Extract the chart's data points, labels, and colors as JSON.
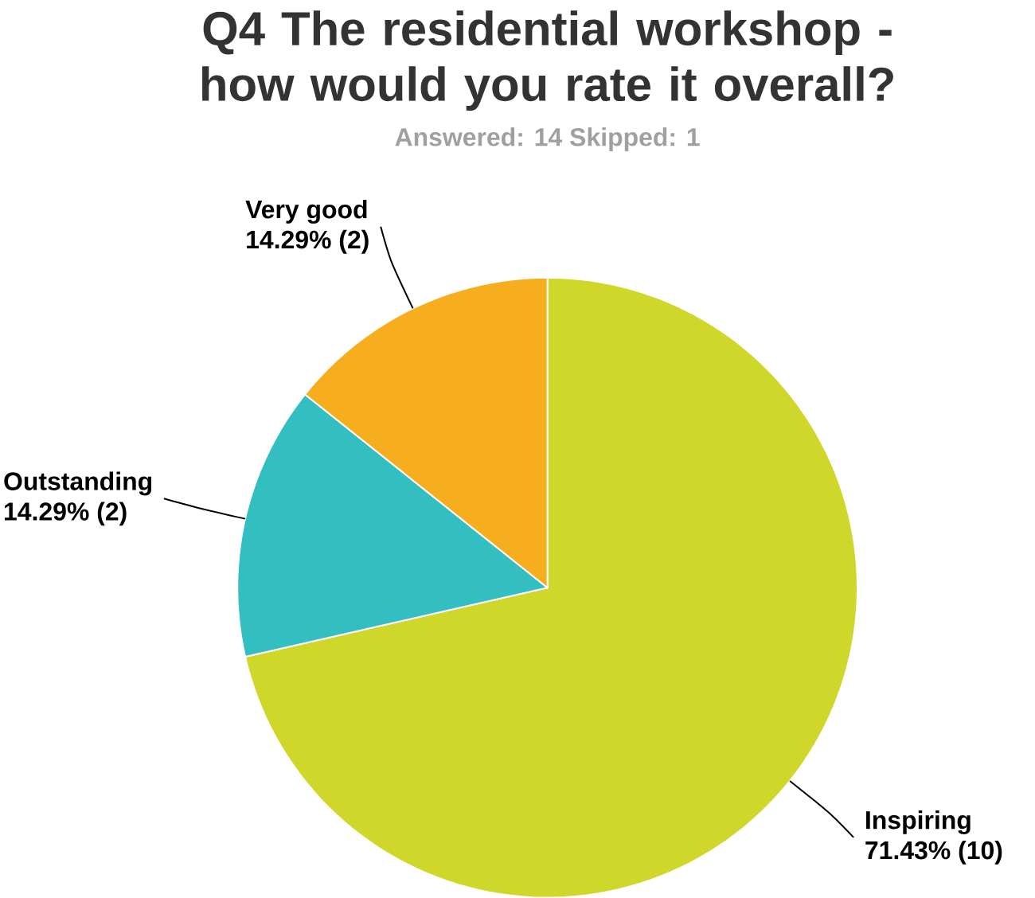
{
  "chart_data": {
    "type": "pie",
    "title": "Q4 The residential workshop - how would you rate it overall?",
    "subtitle": "Answered: 14    Skipped: 1",
    "categories": [
      "Inspiring",
      "Outstanding",
      "Very good"
    ],
    "values": [
      71.43,
      14.29,
      14.29
    ],
    "value_labels": [
      "71.43% (10)",
      "14.29% (2)",
      "14.29% (2)"
    ],
    "colors": [
      "#d0d72b",
      "#33bec1",
      "#f6ae1f"
    ]
  }
}
